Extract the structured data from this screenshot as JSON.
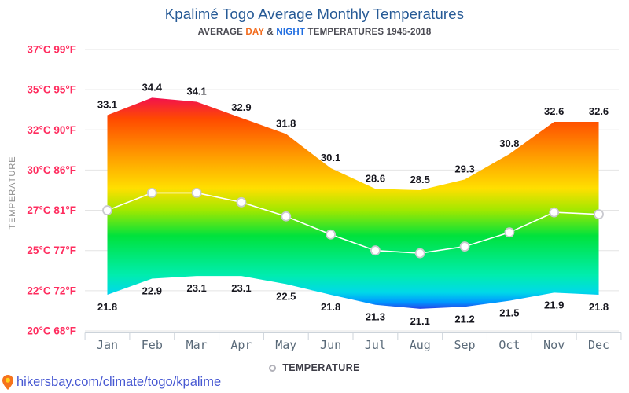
{
  "header": {
    "title": "Kpalimé Togo Average Monthly Temperatures",
    "subtitle": {
      "prefix": "AVERAGE ",
      "day": "DAY",
      "amp": " & ",
      "night": "NIGHT",
      "suffix": " TEMPERATURES 1945-2018"
    }
  },
  "chart_data": {
    "type": "area",
    "title": "Kpalimé Togo Average Monthly Temperatures",
    "subtitle": "AVERAGE DAY & NIGHT TEMPERATURES 1945-2018",
    "categories": [
      "Jan",
      "Feb",
      "Mar",
      "Apr",
      "May",
      "Jun",
      "Jul",
      "Aug",
      "Sep",
      "Oct",
      "Nov",
      "Dec"
    ],
    "series": [
      {
        "name": "Day",
        "values": [
          33.1,
          34.4,
          34.1,
          32.9,
          31.8,
          30.1,
          28.6,
          28.5,
          29.3,
          30.8,
          32.6,
          32.6
        ]
      },
      {
        "name": "Night",
        "values": [
          21.8,
          22.9,
          23.1,
          23.1,
          22.5,
          21.8,
          21.3,
          21.1,
          21.2,
          21.5,
          21.9,
          21.8
        ]
      },
      {
        "name": "Temperature (white average line, unlabeled)",
        "values": [
          27.0,
          28.3,
          28.3,
          27.6,
          26.7,
          25.8,
          25.0,
          24.8,
          25.2,
          25.9,
          26.9,
          26.8
        ]
      }
    ],
    "yticks": [
      {
        "celsius": "37°C",
        "fahrenheit": "99°F",
        "value": 37
      },
      {
        "celsius": "35°C",
        "fahrenheit": "95°F",
        "value": 35
      },
      {
        "celsius": "32°C",
        "fahrenheit": "90°F",
        "value": 32
      },
      {
        "celsius": "30°C",
        "fahrenheit": "86°F",
        "value": 30
      },
      {
        "celsius": "27°C",
        "fahrenheit": "81°F",
        "value": 27
      },
      {
        "celsius": "25°C",
        "fahrenheit": "77°F",
        "value": 25
      },
      {
        "celsius": "22°C",
        "fahrenheit": "72°F",
        "value": 22
      },
      {
        "celsius": "20°C",
        "fahrenheit": "68°F",
        "value": 20
      }
    ],
    "ylabel": "TEMPERATURE",
    "legend": {
      "label": "TEMPERATURE"
    },
    "grid": true,
    "layout_hints": {
      "yticks_evenly_spaced": true,
      "area_fill": "vertical rainbow gradient hot-to-cold",
      "legend_position": "bottom-center"
    },
    "colors": {
      "title": "#265a96",
      "subtitle_day": "#f26b1d",
      "subtitle_night": "#1e6ce0",
      "ytick_label": "#ff2d5f",
      "month_label": "#5a6a79",
      "data_label": "#17171f",
      "gridline": "#e4e4e4",
      "axis": "#ccd3da",
      "average_line": "#ffffff",
      "marker_stroke": "#c9c9cf",
      "gradient": [
        {
          "offset": 0.0,
          "color": "#f2114d"
        },
        {
          "offset": 0.1,
          "color": "#ff4a00"
        },
        {
          "offset": 0.28,
          "color": "#ff9e00"
        },
        {
          "offset": 0.43,
          "color": "#ffdf00"
        },
        {
          "offset": 0.535,
          "color": "#9fe800"
        },
        {
          "offset": 0.654,
          "color": "#00e23c"
        },
        {
          "offset": 0.84,
          "color": "#00edae"
        },
        {
          "offset": 0.922,
          "color": "#00d9e8"
        },
        {
          "offset": 0.97,
          "color": "#0096ff"
        },
        {
          "offset": 1.0,
          "color": "#2742e6"
        }
      ]
    }
  },
  "footer": {
    "icon": "location-pin-icon",
    "link": "hikersbay.com/climate/togo/kpalime",
    "link_color": "#4758d2"
  }
}
